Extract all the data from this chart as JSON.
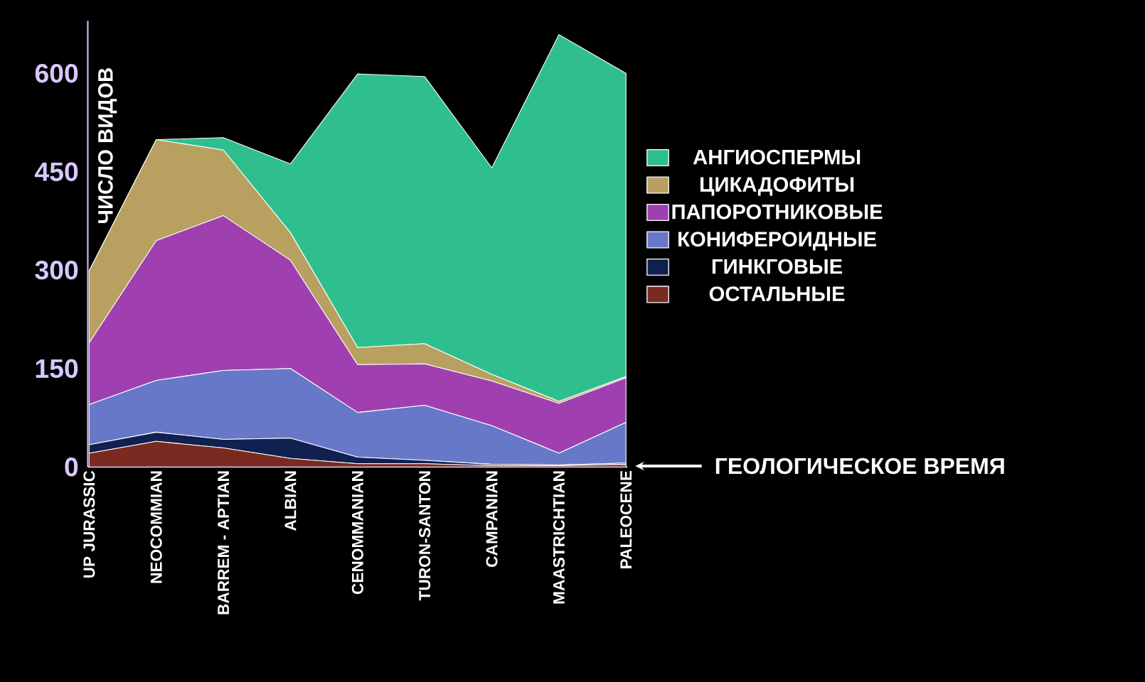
{
  "chart_data": {
    "type": "area",
    "stacked": true,
    "ylabel": "ЧИСЛО ВИДОВ",
    "categories": [
      "UP JURASSIC",
      "NEOCOMMIAN",
      "BARREM - APTIAN",
      "ALBIAN",
      "CENOMMANIAN",
      "TURON-SANTON",
      "CAMPANIAN",
      "MAASTRICHTIAN",
      "PALEOCENE"
    ],
    "series": [
      {
        "name": "ОСТАЛЬНЫЕ",
        "color": "#7a2a20",
        "values": [
          21,
          39,
          29,
          13,
          5,
          5,
          2,
          2,
          4
        ]
      },
      {
        "name": "ГИНКГОВЫЕ",
        "color": "#102050",
        "values": [
          13,
          14,
          13,
          31,
          10,
          5,
          2,
          1,
          2
        ]
      },
      {
        "name": "КОНИФЕРОИДНЫЕ",
        "color": "#6878c8",
        "values": [
          61,
          79,
          105,
          106,
          68,
          84,
          59,
          18,
          62
        ]
      },
      {
        "name": "ПАПОРОТНИКОВЫЕ",
        "color": "#a040b0",
        "values": [
          94,
          213,
          236,
          165,
          73,
          63,
          68,
          76,
          68
        ]
      },
      {
        "name": "ЦИКАДОФИТЫ",
        "color": "#b8a060",
        "values": [
          110,
          154,
          100,
          42,
          26,
          31,
          10,
          3,
          2
        ]
      },
      {
        "name": "АНГИОСПЕРМЫ",
        "color": "#2fbf8f",
        "values": [
          0,
          0,
          19,
          105,
          417,
          407,
          315,
          559,
          462
        ]
      }
    ],
    "ylim": [
      0,
      680
    ],
    "yticks": [
      0,
      150,
      300,
      450,
      600
    ],
    "legend": "right",
    "annotations": [
      "ГЕОЛОГИЧЕСКОЕ ВРЕМЯ"
    ]
  }
}
